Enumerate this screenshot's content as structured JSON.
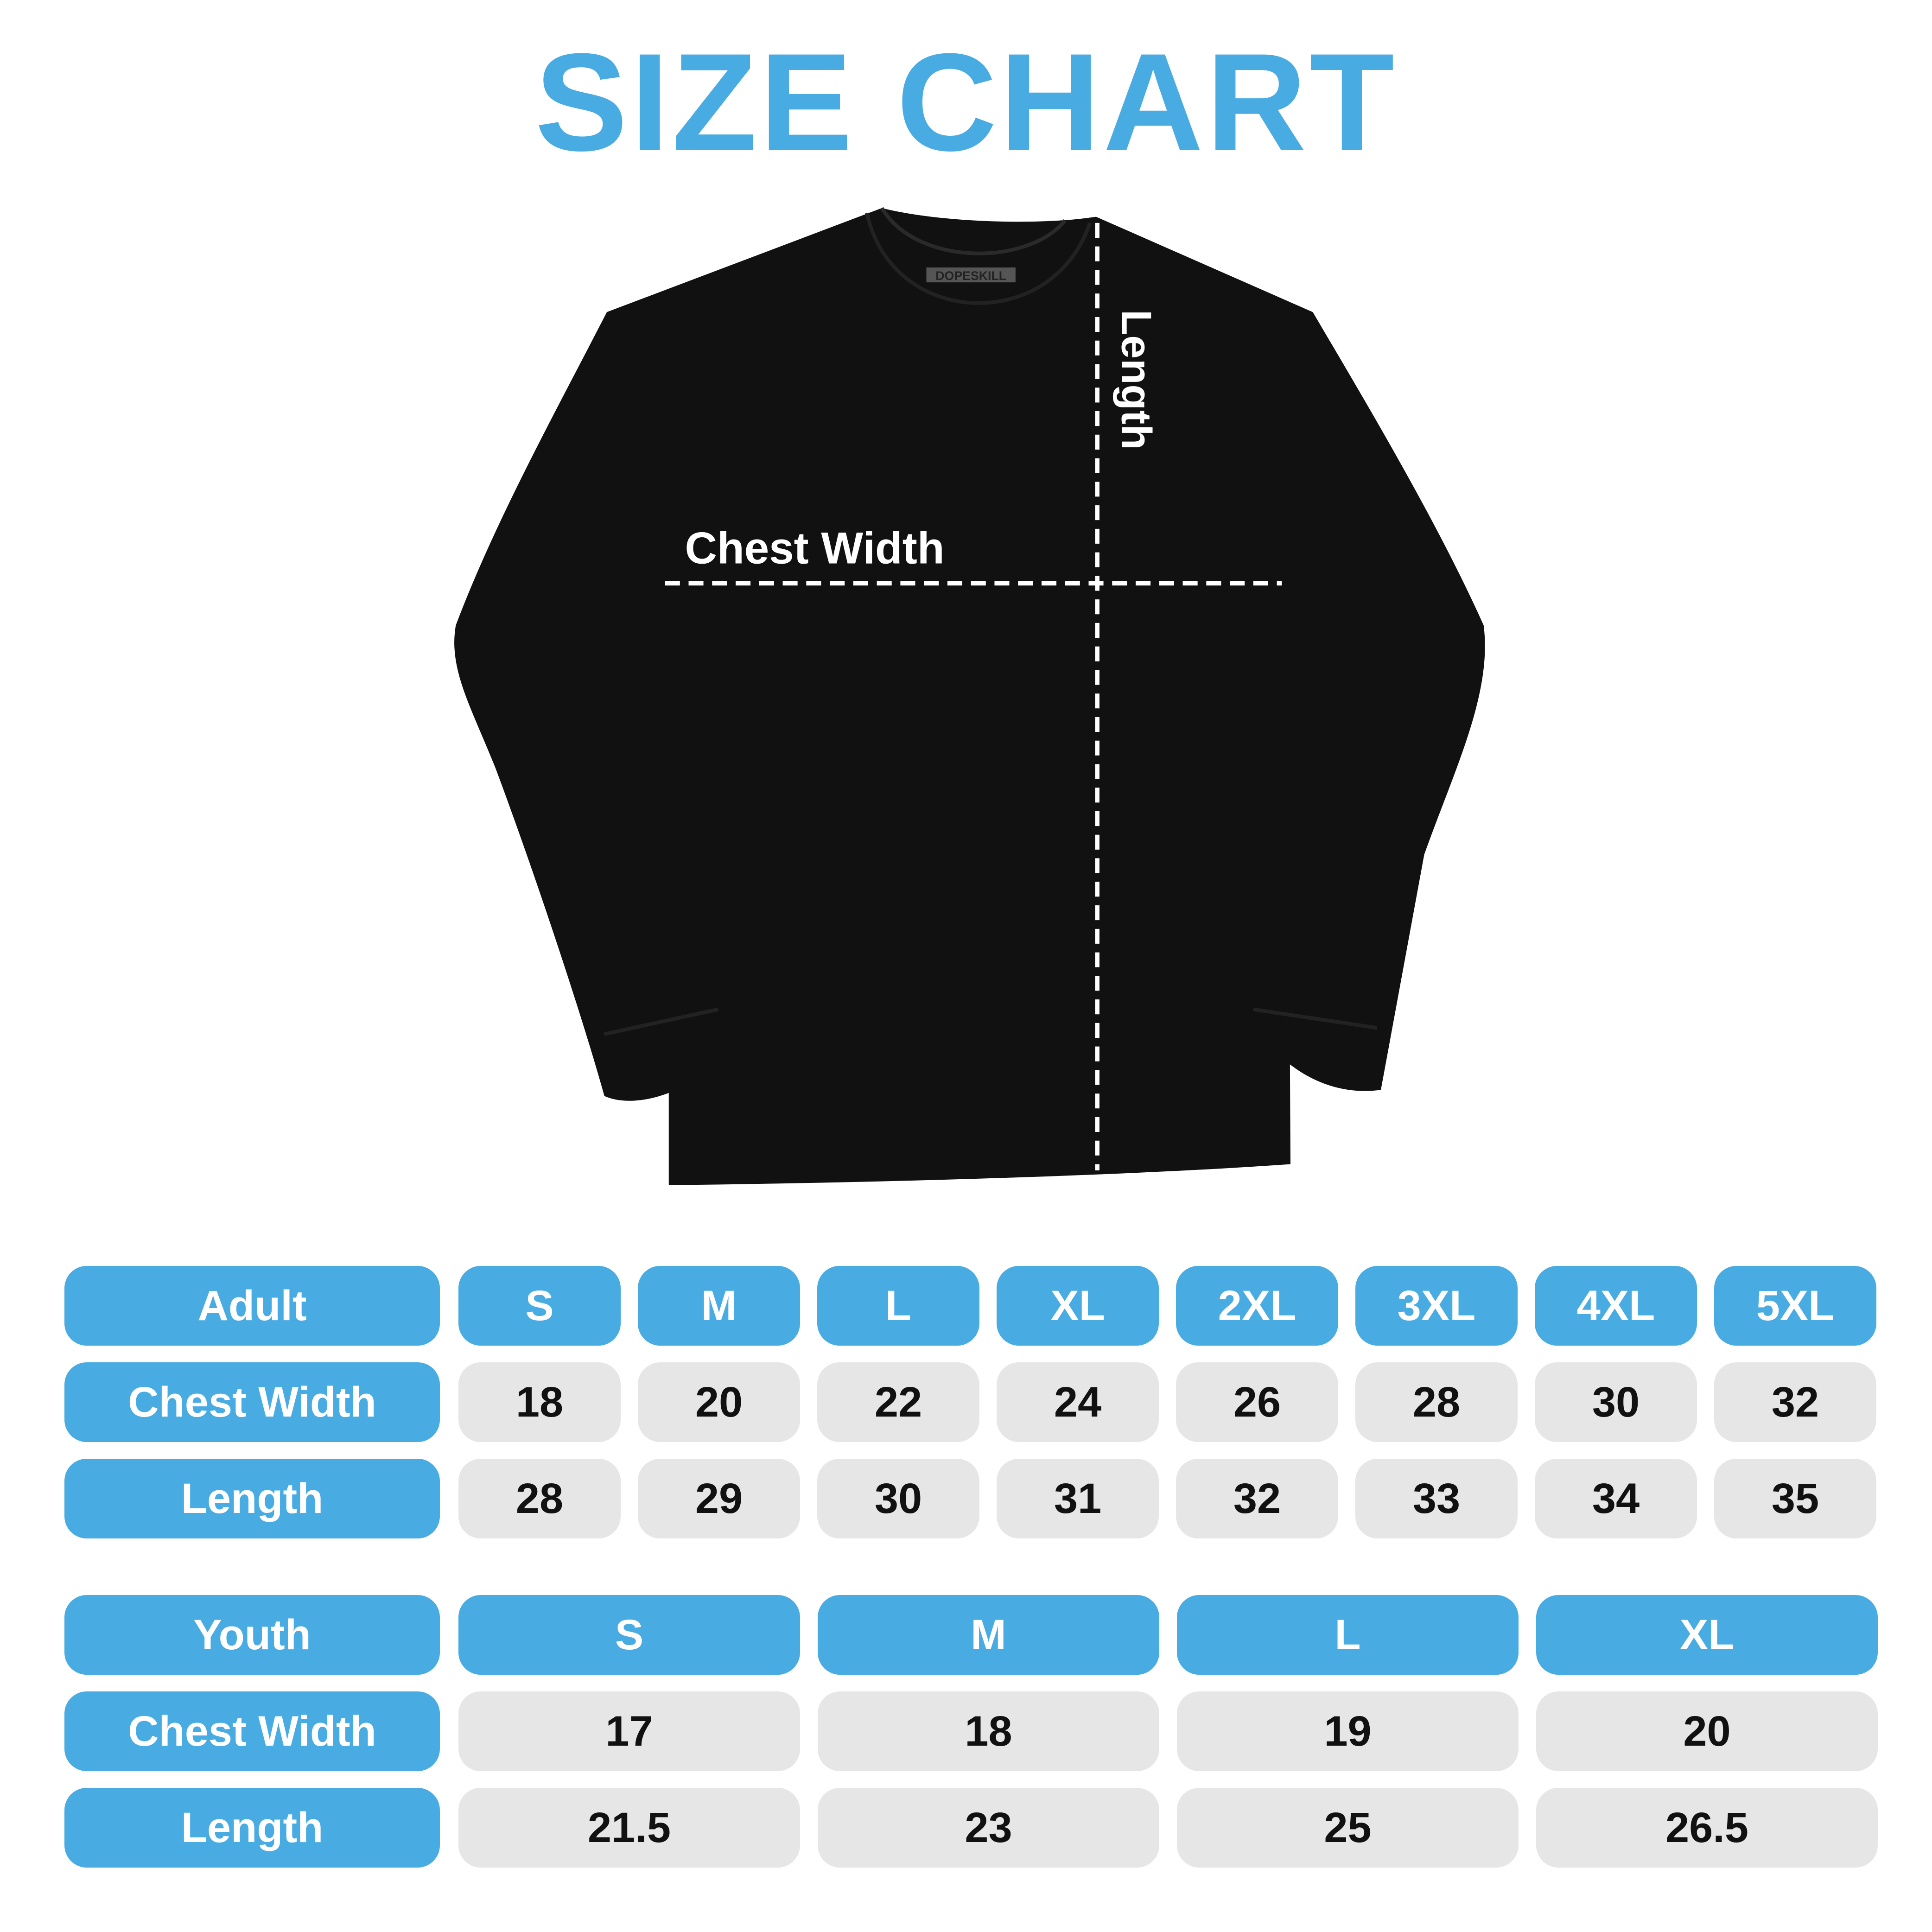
{
  "title": "SIZE CHART",
  "brand_tag": "DOPESKILL",
  "diagram": {
    "chest_label": "Chest Width",
    "length_label": "Length"
  },
  "colors": {
    "accent": "#48ABE2",
    "cell_bg": "#E6E6E7",
    "shirt": "#111111"
  },
  "adult": {
    "header": "Adult",
    "sizes": [
      "S",
      "M",
      "L",
      "XL",
      "2XL",
      "3XL",
      "4XL",
      "5XL"
    ],
    "rows": [
      {
        "label": "Chest Width",
        "values": [
          "18",
          "20",
          "22",
          "24",
          "26",
          "28",
          "30",
          "32"
        ]
      },
      {
        "label": "Length",
        "values": [
          "28",
          "29",
          "30",
          "31",
          "32",
          "33",
          "34",
          "35"
        ]
      }
    ]
  },
  "youth": {
    "header": "Youth",
    "sizes": [
      "S",
      "M",
      "L",
      "XL"
    ],
    "rows": [
      {
        "label": "Chest Width",
        "values": [
          "17",
          "18",
          "19",
          "20"
        ]
      },
      {
        "label": "Length",
        "values": [
          "21.5",
          "23",
          "25",
          "26.5"
        ]
      }
    ]
  }
}
